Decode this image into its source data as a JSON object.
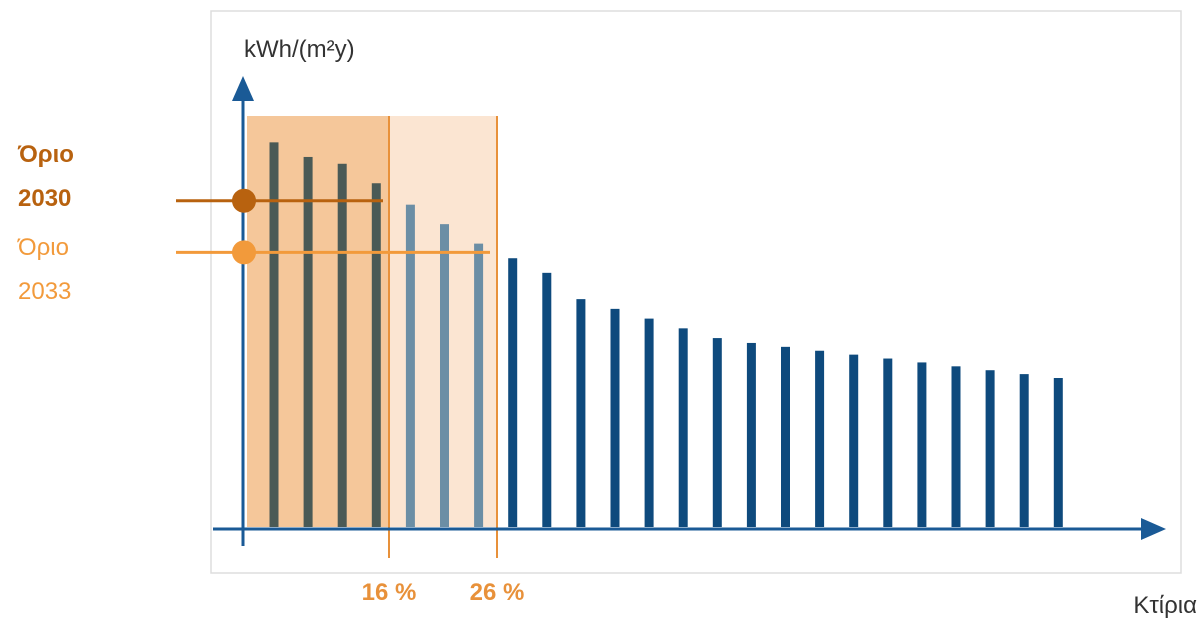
{
  "chart_data": {
    "type": "bar",
    "title": "",
    "xlabel": "Κτίρια",
    "ylabel": "kWh/(m²y)",
    "values": [
      395,
      380,
      373,
      353,
      331,
      311,
      291,
      276,
      261,
      234,
      224,
      214,
      204,
      194,
      189,
      185,
      181,
      177,
      173,
      169,
      165,
      161,
      157,
      153
    ],
    "ylim": [
      0,
      420
    ],
    "thresholds": [
      {
        "label_line1": "Όριο",
        "label_line2": "2030",
        "value": 335,
        "color": "#b8620f"
      },
      {
        "label_line1": "Όριο",
        "label_line2": "2033",
        "value": 282,
        "color": "#f29a3b"
      }
    ],
    "percent_markers": [
      "16 %",
      "26 %"
    ],
    "colors": {
      "bar": "#0e4a7d",
      "bar_in_16": "#4a5a56",
      "bar_in_26": "#6b8ea5",
      "shade_16": "#f5c79a",
      "shade_26": "#fbe5d2",
      "axis": "#1a5a96",
      "marker": "#e8913a",
      "frame": "#dddddd"
    }
  }
}
